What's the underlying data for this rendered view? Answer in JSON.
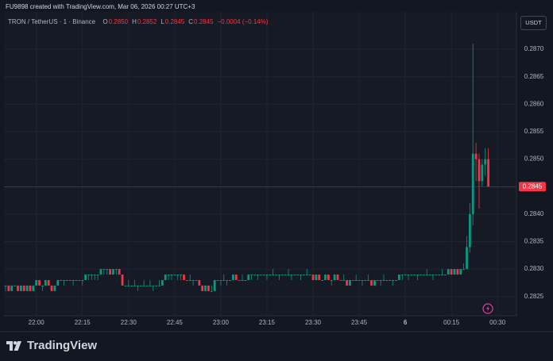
{
  "header": {
    "text": "FU9898 created with TradingView.com, Mar 06, 2026 00:27 UTC+3"
  },
  "footer": {
    "brand": "TradingView"
  },
  "chart_data": {
    "type": "candlestick",
    "symbol": "TRON / TetherUS · 1 · Binance",
    "ohlc_legend": [
      {
        "label": "O",
        "value": "0.2850"
      },
      {
        "label": "H",
        "value": "0.2852"
      },
      {
        "label": "L",
        "value": "0.2845"
      },
      {
        "label": "C",
        "value": "0.2845"
      }
    ],
    "change": "−0.0004 (−0.14%)",
    "currency": "USDT",
    "up_color": "#089981",
    "down_color": "#f23645",
    "last_price": 0.2845,
    "ylim": [
      0.28215,
      0.28768
    ],
    "yticks": [
      0.2825,
      {
        "value": 0.283,
        "label": "0.2830"
      },
      0.2835,
      {
        "value": 0.284,
        "label": "0.2840"
      },
      0.2845,
      {
        "value": 0.285,
        "label": "0.2850"
      },
      0.2855,
      {
        "value": 0.286,
        "label": "0.2860"
      },
      0.2865,
      {
        "value": 0.287,
        "label": "0.2870"
      }
    ],
    "xticks": [
      "22:00",
      "22:15",
      "22:30",
      "22:45",
      "23:00",
      "23:15",
      "23:30",
      "23:45",
      {
        "value": "00:00",
        "label": "6"
      },
      "00:15",
      "00:30"
    ],
    "grid": true,
    "categories": [
      "21:50",
      "21:51",
      "21:52",
      "21:53",
      "21:54",
      "21:55",
      "21:56",
      "21:57",
      "21:58",
      "21:59",
      "22:00",
      "22:01",
      "22:02",
      "22:03",
      "22:04",
      "22:05",
      "22:06",
      "22:07",
      "22:08",
      "22:09",
      "22:10",
      "22:11",
      "22:12",
      "22:13",
      "22:14",
      "22:15",
      "22:16",
      "22:17",
      "22:18",
      "22:19",
      "22:20",
      "22:21",
      "22:22",
      "22:23",
      "22:24",
      "22:25",
      "22:26",
      "22:27",
      "22:28",
      "22:29",
      "22:30",
      "22:31",
      "22:32",
      "22:33",
      "22:34",
      "22:35",
      "22:36",
      "22:37",
      "22:38",
      "22:39",
      "22:40",
      "22:41",
      "22:42",
      "22:43",
      "22:44",
      "22:45",
      "22:46",
      "22:47",
      "22:48",
      "22:49",
      "22:50",
      "22:51",
      "22:52",
      "22:53",
      "22:54",
      "22:55",
      "22:56",
      "22:57",
      "22:58",
      "22:59",
      "23:00",
      "23:01",
      "23:02",
      "23:03",
      "23:04",
      "23:05",
      "23:06",
      "23:07",
      "23:08",
      "23:09",
      "23:10",
      "23:11",
      "23:12",
      "23:13",
      "23:14",
      "23:15",
      "23:16",
      "23:17",
      "23:18",
      "23:19",
      "23:20",
      "23:21",
      "23:22",
      "23:23",
      "23:24",
      "23:25",
      "23:26",
      "23:27",
      "23:28",
      "23:29",
      "23:30",
      "23:31",
      "23:32",
      "23:33",
      "23:34",
      "23:35",
      "23:36",
      "23:37",
      "23:38",
      "23:39",
      "23:40",
      "23:41",
      "23:42",
      "23:43",
      "23:44",
      "23:45",
      "23:46",
      "23:47",
      "23:48",
      "23:49",
      "23:50",
      "23:51",
      "23:52",
      "23:53",
      "23:54",
      "23:55",
      "23:56",
      "23:57",
      "23:58",
      "23:59",
      "00:00",
      "00:01",
      "00:02",
      "00:03",
      "00:04",
      "00:05",
      "00:06",
      "00:07",
      "00:08",
      "00:09",
      "00:10",
      "00:11",
      "00:12",
      "00:13",
      "00:14",
      "00:15",
      "00:16",
      "00:17",
      "00:18",
      "00:19",
      "00:20",
      "00:21",
      "00:22",
      "00:23",
      "00:24",
      "00:25",
      "00:26",
      "00:27",
      "00:28",
      "00:29",
      "00:30"
    ],
    "ohlc": [
      [
        0.2827,
        0.2827,
        0.2826,
        0.2827
      ],
      [
        0.2827,
        0.2827,
        0.2826,
        0.2826
      ],
      [
        0.2826,
        0.2827,
        0.2826,
        0.2827
      ],
      [
        0.2827,
        0.2827,
        0.2827,
        0.2827
      ],
      [
        0.2827,
        0.2827,
        0.2826,
        0.2826
      ],
      [
        0.2826,
        0.2827,
        0.2826,
        0.2827
      ],
      [
        0.2827,
        0.2827,
        0.2826,
        0.2826
      ],
      [
        0.2826,
        0.2827,
        0.2826,
        0.2827
      ],
      [
        0.2827,
        0.2827,
        0.2826,
        0.2826
      ],
      [
        0.2826,
        0.2827,
        0.2826,
        0.2827
      ],
      [
        0.2827,
        0.2828,
        0.2827,
        0.2828
      ],
      [
        0.2828,
        0.2828,
        0.2827,
        0.2827
      ],
      [
        0.2827,
        0.2827,
        0.2826,
        0.2827
      ],
      [
        0.2827,
        0.2828,
        0.2827,
        0.2828
      ],
      [
        0.2828,
        0.2828,
        0.2827,
        0.2827
      ],
      [
        0.2827,
        0.2827,
        0.2826,
        0.2826
      ],
      [
        0.2826,
        0.2827,
        0.2826,
        0.2827
      ],
      [
        0.2827,
        0.2828,
        0.2827,
        0.2828
      ],
      [
        0.2828,
        0.2828,
        0.2828,
        0.2828
      ],
      [
        0.2828,
        0.2828,
        0.2827,
        0.2828
      ],
      [
        0.2828,
        0.2828,
        0.2828,
        0.2828
      ],
      [
        0.2828,
        0.2828,
        0.2828,
        0.2828
      ],
      [
        0.2828,
        0.2828,
        0.2827,
        0.2828
      ],
      [
        0.2828,
        0.2828,
        0.2828,
        0.2828
      ],
      [
        0.2828,
        0.2828,
        0.2828,
        0.2828
      ],
      [
        0.2828,
        0.2828,
        0.2827,
        0.2828
      ],
      [
        0.2828,
        0.2829,
        0.2828,
        0.2829
      ],
      [
        0.2829,
        0.2829,
        0.2828,
        0.2829
      ],
      [
        0.2829,
        0.2829,
        0.2828,
        0.2829
      ],
      [
        0.2829,
        0.2829,
        0.2828,
        0.2829
      ],
      [
        0.2829,
        0.2829,
        0.2828,
        0.2829
      ],
      [
        0.2829,
        0.283,
        0.2829,
        0.283
      ],
      [
        0.283,
        0.283,
        0.2829,
        0.283
      ],
      [
        0.283,
        0.283,
        0.2829,
        0.283
      ],
      [
        0.283,
        0.283,
        0.2829,
        0.2829
      ],
      [
        0.2829,
        0.283,
        0.2829,
        0.283
      ],
      [
        0.283,
        0.283,
        0.2829,
        0.283
      ],
      [
        0.283,
        0.283,
        0.2829,
        0.2829
      ],
      [
        0.2829,
        0.2829,
        0.2827,
        0.2827
      ],
      [
        0.2827,
        0.2827,
        0.2827,
        0.2827
      ],
      [
        0.2827,
        0.2828,
        0.2827,
        0.2827
      ],
      [
        0.2827,
        0.2827,
        0.2827,
        0.2827
      ],
      [
        0.2827,
        0.2828,
        0.2827,
        0.2827
      ],
      [
        0.2827,
        0.2827,
        0.2826,
        0.2827
      ],
      [
        0.2827,
        0.2827,
        0.2827,
        0.2827
      ],
      [
        0.2827,
        0.2828,
        0.2827,
        0.2827
      ],
      [
        0.2827,
        0.2827,
        0.2827,
        0.2827
      ],
      [
        0.2827,
        0.2828,
        0.2827,
        0.2827
      ],
      [
        0.2827,
        0.2827,
        0.2826,
        0.2827
      ],
      [
        0.2827,
        0.2827,
        0.2827,
        0.2827
      ],
      [
        0.2827,
        0.2828,
        0.2827,
        0.2827
      ],
      [
        0.2827,
        0.2828,
        0.2827,
        0.2828
      ],
      [
        0.2828,
        0.2829,
        0.2828,
        0.2829
      ],
      [
        0.2829,
        0.2829,
        0.2828,
        0.2829
      ],
      [
        0.2829,
        0.2829,
        0.2828,
        0.2829
      ],
      [
        0.2829,
        0.2829,
        0.2829,
        0.2829
      ],
      [
        0.2829,
        0.2829,
        0.2828,
        0.2829
      ],
      [
        0.2829,
        0.2829,
        0.2828,
        0.2829
      ],
      [
        0.2829,
        0.2829,
        0.2828,
        0.2828
      ],
      [
        0.2828,
        0.2828,
        0.2828,
        0.2828
      ],
      [
        0.2828,
        0.2829,
        0.2828,
        0.2828
      ],
      [
        0.2828,
        0.2828,
        0.2827,
        0.2828
      ],
      [
        0.2828,
        0.2828,
        0.2828,
        0.2828
      ],
      [
        0.2828,
        0.2828,
        0.2827,
        0.2827
      ],
      [
        0.2827,
        0.2827,
        0.2826,
        0.2826
      ],
      [
        0.2826,
        0.2827,
        0.2826,
        0.2827
      ],
      [
        0.2827,
        0.2827,
        0.2826,
        0.2826
      ],
      [
        0.2826,
        0.2827,
        0.2826,
        0.2826
      ],
      [
        0.2826,
        0.2828,
        0.2826,
        0.2828
      ],
      [
        0.2828,
        0.2828,
        0.2828,
        0.2828
      ],
      [
        0.2828,
        0.2828,
        0.2827,
        0.2828
      ],
      [
        0.2828,
        0.2829,
        0.2828,
        0.2828
      ],
      [
        0.2828,
        0.2828,
        0.2827,
        0.2828
      ],
      [
        0.2828,
        0.2828,
        0.2828,
        0.2828
      ],
      [
        0.2828,
        0.2829,
        0.2828,
        0.2829
      ],
      [
        0.2829,
        0.2829,
        0.2828,
        0.2828
      ],
      [
        0.2828,
        0.2828,
        0.2828,
        0.2828
      ],
      [
        0.2828,
        0.2829,
        0.2828,
        0.2828
      ],
      [
        0.2828,
        0.2828,
        0.2828,
        0.2828
      ],
      [
        0.2828,
        0.2829,
        0.2828,
        0.2829
      ],
      [
        0.2829,
        0.2829,
        0.2828,
        0.2829
      ],
      [
        0.2829,
        0.2829,
        0.2829,
        0.2829
      ],
      [
        0.2829,
        0.2829,
        0.2828,
        0.2829
      ],
      [
        0.2829,
        0.2829,
        0.2829,
        0.2829
      ],
      [
        0.2829,
        0.2829,
        0.2829,
        0.2829
      ],
      [
        0.2829,
        0.2829,
        0.2828,
        0.2829
      ],
      [
        0.2829,
        0.2829,
        0.2829,
        0.2829
      ],
      [
        0.2829,
        0.283,
        0.2829,
        0.2829
      ],
      [
        0.2829,
        0.2829,
        0.2829,
        0.2829
      ],
      [
        0.2829,
        0.2829,
        0.2828,
        0.2829
      ],
      [
        0.2829,
        0.2829,
        0.2829,
        0.2829
      ],
      [
        0.2829,
        0.2829,
        0.2829,
        0.2829
      ],
      [
        0.2829,
        0.283,
        0.2829,
        0.2829
      ],
      [
        0.2829,
        0.2829,
        0.2828,
        0.2829
      ],
      [
        0.2829,
        0.2829,
        0.2829,
        0.2829
      ],
      [
        0.2829,
        0.2829,
        0.2829,
        0.2829
      ],
      [
        0.2829,
        0.2829,
        0.2828,
        0.2829
      ],
      [
        0.2829,
        0.2829,
        0.2829,
        0.2829
      ],
      [
        0.2829,
        0.283,
        0.2829,
        0.2829
      ],
      [
        0.2829,
        0.2829,
        0.2829,
        0.2829
      ],
      [
        0.2829,
        0.2829,
        0.2828,
        0.2828
      ],
      [
        0.2828,
        0.2829,
        0.2828,
        0.2829
      ],
      [
        0.2829,
        0.2829,
        0.2828,
        0.2828
      ],
      [
        0.2828,
        0.2828,
        0.2828,
        0.2828
      ],
      [
        0.2828,
        0.2829,
        0.2828,
        0.2829
      ],
      [
        0.2829,
        0.2829,
        0.2828,
        0.2828
      ],
      [
        0.2828,
        0.2828,
        0.2827,
        0.2828
      ],
      [
        0.2828,
        0.2829,
        0.2828,
        0.2829
      ],
      [
        0.2829,
        0.2829,
        0.2828,
        0.2828
      ],
      [
        0.2828,
        0.2828,
        0.2828,
        0.2828
      ],
      [
        0.2828,
        0.2829,
        0.2828,
        0.2828
      ],
      [
        0.2828,
        0.2828,
        0.2827,
        0.2827
      ],
      [
        0.2827,
        0.2828,
        0.2827,
        0.2828
      ],
      [
        0.2828,
        0.2828,
        0.2828,
        0.2828
      ],
      [
        0.2828,
        0.2829,
        0.2828,
        0.2828
      ],
      [
        0.2828,
        0.2828,
        0.2828,
        0.2828
      ],
      [
        0.2828,
        0.2828,
        0.2827,
        0.2828
      ],
      [
        0.2828,
        0.2828,
        0.2828,
        0.2828
      ],
      [
        0.2828,
        0.2829,
        0.2828,
        0.2828
      ],
      [
        0.2828,
        0.2828,
        0.2827,
        0.2827
      ],
      [
        0.2827,
        0.2828,
        0.2827,
        0.2828
      ],
      [
        0.2828,
        0.2828,
        0.2828,
        0.2828
      ],
      [
        0.2828,
        0.2828,
        0.2827,
        0.2828
      ],
      [
        0.2828,
        0.2829,
        0.2828,
        0.2828
      ],
      [
        0.2828,
        0.2828,
        0.2828,
        0.2828
      ],
      [
        0.2828,
        0.2828,
        0.2828,
        0.2828
      ],
      [
        0.2828,
        0.2828,
        0.2827,
        0.2828
      ],
      [
        0.2828,
        0.2828,
        0.2828,
        0.2828
      ],
      [
        0.2828,
        0.2829,
        0.2828,
        0.2829
      ],
      [
        0.2829,
        0.2829,
        0.2828,
        0.2829
      ],
      [
        0.2829,
        0.2829,
        0.2829,
        0.2829
      ],
      [
        0.2829,
        0.2829,
        0.2828,
        0.2829
      ],
      [
        0.2829,
        0.2829,
        0.2829,
        0.2829
      ],
      [
        0.2829,
        0.2829,
        0.2829,
        0.2829
      ],
      [
        0.2829,
        0.2829,
        0.2828,
        0.2829
      ],
      [
        0.2829,
        0.2829,
        0.2829,
        0.2829
      ],
      [
        0.2829,
        0.2829,
        0.2829,
        0.2829
      ],
      [
        0.2829,
        0.283,
        0.2829,
        0.2829
      ],
      [
        0.2829,
        0.2829,
        0.2829,
        0.2829
      ],
      [
        0.2829,
        0.2829,
        0.2828,
        0.2829
      ],
      [
        0.2829,
        0.2829,
        0.2829,
        0.2829
      ],
      [
        0.2829,
        0.2829,
        0.2829,
        0.2829
      ],
      [
        0.2829,
        0.283,
        0.2829,
        0.2829
      ],
      [
        0.2829,
        0.2829,
        0.2829,
        0.2829
      ],
      [
        0.2829,
        0.283,
        0.2829,
        0.283
      ],
      [
        0.283,
        0.283,
        0.2829,
        0.2829
      ],
      [
        0.2829,
        0.283,
        0.2829,
        0.283
      ],
      [
        0.283,
        0.283,
        0.2829,
        0.2829
      ],
      [
        0.2829,
        0.283,
        0.2829,
        0.283
      ],
      [
        0.283,
        0.2831,
        0.283,
        0.283
      ],
      [
        0.283,
        0.2836,
        0.283,
        0.2834
      ],
      [
        0.2834,
        0.2842,
        0.2833,
        0.284
      ],
      [
        0.284,
        0.2871,
        0.2838,
        0.2851
      ],
      [
        0.2851,
        0.2853,
        0.2846,
        0.285
      ],
      [
        0.285,
        0.2851,
        0.2841,
        0.2846
      ],
      [
        0.2846,
        0.285,
        0.2845,
        0.2849
      ],
      [
        0.2849,
        0.2852,
        0.2847,
        0.285
      ],
      [
        0.285,
        0.2852,
        0.2845,
        0.2845
      ],
      null,
      null,
      null
    ]
  }
}
